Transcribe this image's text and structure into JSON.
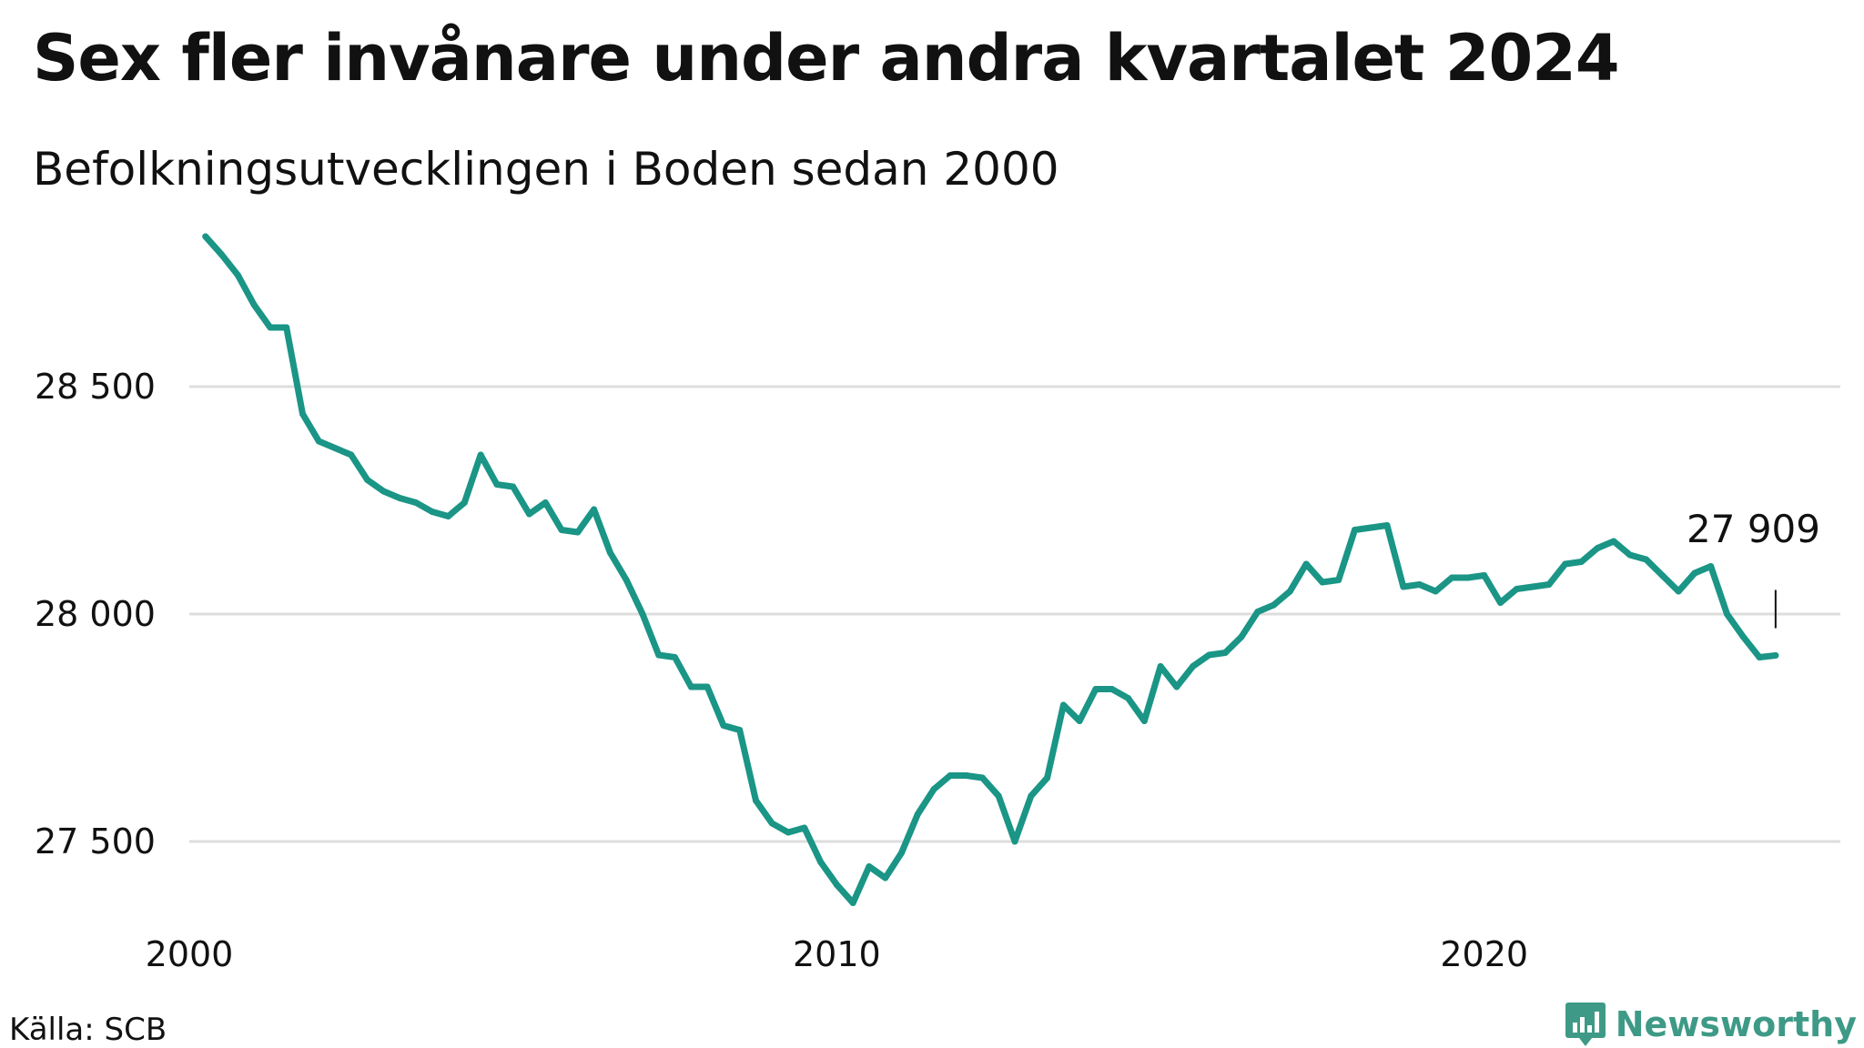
{
  "header": {
    "title": "Sex fler invånare under andra kvartalet 2024",
    "subtitle": "Befolkningsutvecklingen i Boden sedan 2000"
  },
  "footer": {
    "source": "Källa: SCB",
    "brand": "Newsworthy"
  },
  "colors": {
    "line": "#1a9586",
    "brand": "#3e9a86",
    "grid": "#dedede"
  },
  "chart_data": {
    "type": "line",
    "title": "Sex fler invånare under andra kvartalet 2024",
    "subtitle": "Befolkningsutvecklingen i Boden sedan 2000",
    "xlabel": "",
    "ylabel": "",
    "xlim": [
      2000,
      2025.5
    ],
    "ylim": [
      27350,
      28850
    ],
    "grid": true,
    "legend": "none",
    "y_ticks": [
      27500,
      28000,
      28500
    ],
    "y_tick_labels": [
      "27 500",
      "28 000",
      "28 500"
    ],
    "x_ticks": [
      2000,
      2010,
      2020
    ],
    "x_tick_labels": [
      "2000",
      "2010",
      "2020"
    ],
    "end_label": "27 909",
    "series": [
      {
        "x": [
          2000.25,
          2000.5,
          2000.75,
          2001.0,
          2001.25,
          2001.5,
          2001.75,
          2002.0,
          2002.25,
          2002.5,
          2002.75,
          2003.0,
          2003.25,
          2003.5,
          2003.75,
          2004.0,
          2004.25,
          2004.5,
          2004.75,
          2005.0,
          2005.25,
          2005.5,
          2005.75,
          2006.0,
          2006.25,
          2006.5,
          2006.75,
          2007.0,
          2007.25,
          2007.5,
          2007.75,
          2008.0,
          2008.25,
          2008.5,
          2008.75,
          2009.0,
          2009.25,
          2009.5,
          2009.75,
          2010.0,
          2010.25,
          2010.5,
          2010.75,
          2011.0,
          2011.25,
          2011.5,
          2011.75,
          2012.0,
          2012.25,
          2012.5,
          2012.75,
          2013.0,
          2013.25,
          2013.5,
          2013.75,
          2014.0,
          2014.25,
          2014.5,
          2014.75,
          2015.0,
          2015.25,
          2015.5,
          2015.75,
          2016.0,
          2016.25,
          2016.5,
          2016.75,
          2017.0,
          2017.25,
          2017.5,
          2017.75,
          2018.0,
          2018.25,
          2018.5,
          2018.75,
          2019.0,
          2019.25,
          2019.5,
          2019.75,
          2020.0,
          2020.25,
          2020.5,
          2020.75,
          2021.0,
          2021.25,
          2021.5,
          2021.75,
          2022.0,
          2022.25,
          2022.5,
          2022.75,
          2023.0,
          2023.25,
          2023.5,
          2023.75,
          2024.0,
          2024.25,
          2024.5
        ],
        "values": [
          28830,
          28790,
          28745,
          28680,
          28630,
          28630,
          28440,
          28380,
          28365,
          28350,
          28295,
          28270,
          28255,
          28245,
          28225,
          28215,
          28245,
          28350,
          28285,
          28280,
          28220,
          28245,
          28185,
          28180,
          28230,
          28135,
          28075,
          28000,
          27910,
          27905,
          27840,
          27840,
          27755,
          27745,
          27590,
          27540,
          27520,
          27530,
          27455,
          27405,
          27365,
          27445,
          27420,
          27475,
          27560,
          27615,
          27645,
          27645,
          27640,
          27600,
          27500,
          27600,
          27640,
          27800,
          27765,
          27835,
          27835,
          27815,
          27765,
          27885,
          27840,
          27885,
          27910,
          27915,
          27950,
          28005,
          28020,
          28050,
          28110,
          28070,
          28075,
          28185,
          28190,
          28195,
          28060,
          28065,
          28050,
          28080,
          28080,
          28085,
          28025,
          28055,
          28060,
          28065,
          28110,
          28115,
          28145,
          28160,
          28130,
          28120,
          28085,
          28050,
          28090,
          28105,
          28000,
          27950,
          27905,
          27909
        ]
      }
    ]
  }
}
